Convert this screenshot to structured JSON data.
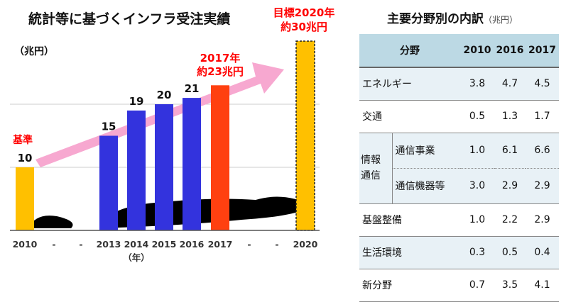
{
  "chart_data": {
    "type": "bar",
    "title": "統計等に基づくインフラ受注実績",
    "unit": "（兆円）",
    "xlabel": "（年）",
    "x_ticks": [
      "2010",
      "-",
      "-",
      "2013",
      "2014",
      "2015",
      "2016",
      "2017",
      "-",
      "-",
      "2020"
    ],
    "bars": [
      {
        "year": "2010",
        "value": 10,
        "label": "10",
        "color": "#ffc000"
      },
      {
        "year": "2013",
        "value": 15,
        "label": "15",
        "color": "#3333dd"
      },
      {
        "year": "2014",
        "value": 19,
        "label": "19",
        "color": "#3333dd"
      },
      {
        "year": "2015",
        "value": 20,
        "label": "20",
        "color": "#3333dd"
      },
      {
        "year": "2016",
        "value": 21,
        "label": "21",
        "color": "#3333dd"
      },
      {
        "year": "2017",
        "value": 23,
        "label": "",
        "color": "#ff4010"
      },
      {
        "year": "2020",
        "value": 30,
        "label": "",
        "color": "#ffc000",
        "dashed": true
      }
    ],
    "ylim": [
      0,
      30
    ],
    "grid": true,
    "annotations": {
      "base": "基準",
      "y2017_line1": "2017年",
      "y2017_line2": "約23兆円",
      "target_line1": "目標2020年",
      "target_line2": "約30兆円"
    },
    "colors": {
      "base_text": "#ff0000",
      "arrow": "#f7a8d0"
    }
  },
  "table": {
    "title": "主要分野別の内訳",
    "unit": "（兆円）",
    "headers": [
      "分野",
      "2010",
      "2016",
      "2017"
    ],
    "rows": [
      {
        "category": "エネルギー",
        "values": [
          "3.8",
          "4.7",
          "4.5"
        ]
      },
      {
        "category": "交通",
        "values": [
          "0.5",
          "1.3",
          "1.7"
        ]
      },
      {
        "group": "情報通信",
        "group_line1": "情報",
        "group_line2": "通信",
        "subs": [
          {
            "category": "通信事業",
            "values": [
              "1.0",
              "6.1",
              "6.6"
            ]
          },
          {
            "category": "通信機器等",
            "values": [
              "3.0",
              "2.9",
              "2.9"
            ]
          }
        ]
      },
      {
        "category": "基盤整備",
        "values": [
          "1.0",
          "2.2",
          "2.9"
        ]
      },
      {
        "category": "生活環境",
        "values": [
          "0.3",
          "0.5",
          "0.4"
        ]
      },
      {
        "category": "新分野",
        "values": [
          "0.7",
          "3.5",
          "4.1"
        ]
      }
    ]
  }
}
